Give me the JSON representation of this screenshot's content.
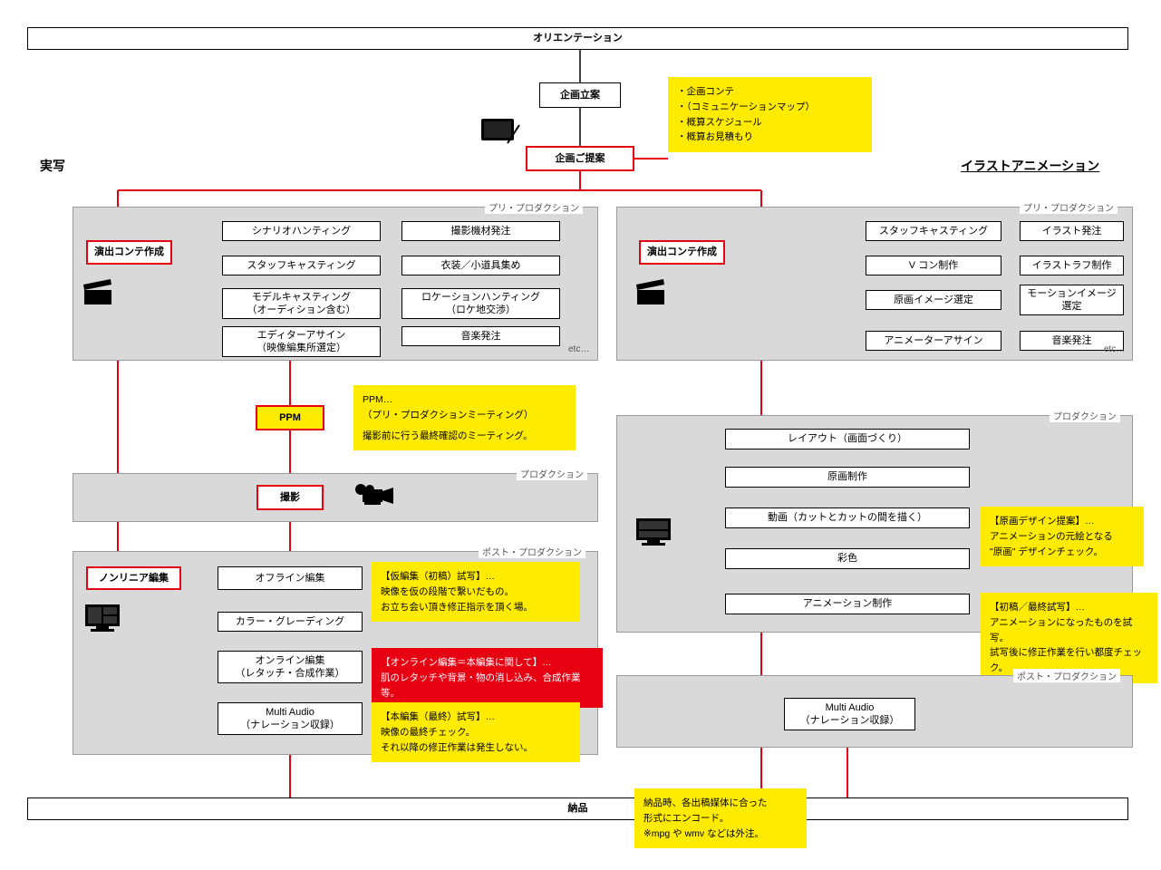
{
  "type": "flowchart",
  "colors": {
    "bg": "#ffffff",
    "panel_bg": "#d9d9d9",
    "panel_border": "#9b9b9b",
    "box_border": "#000000",
    "red": "#e60012",
    "yellow": "#ffeb00",
    "line_black": "#000000",
    "line_red": "#e60012"
  },
  "top": {
    "orientation": "オリエンテーション",
    "planning": "企画立案",
    "proposal": "企画ご提案"
  },
  "callout_proposal": {
    "l1": "・企画コンテ",
    "l2": "・（コミュニケーションマップ）",
    "l3": "・概算スケジュール",
    "l4": "・概算お見積もり"
  },
  "left_title": "実写",
  "right_title": "イラストアニメーション",
  "left_preprod": {
    "label": "プリ・プロダクション",
    "storyboard": "演出コンテ作成",
    "a1": "シナリオハンティング",
    "b1": "撮影機材発注",
    "a2": "スタッフキャスティング",
    "b2": "衣装／小道具集め",
    "a3": "モデルキャスティング\n（オーディション含む）",
    "b3": "ロケーションハンティング\n（ロケ地交渉）",
    "a4": "エディターアサイン\n（映像編集所選定）",
    "b4": "音楽発注",
    "etc": "etc…"
  },
  "ppm": "PPM",
  "callout_ppm": {
    "l1": "PPM…",
    "l2": "（プリ・プロダクションミーティング）",
    "l3": "撮影前に行う最終確認のミーティング。"
  },
  "left_prod": {
    "label": "プロダクション",
    "shoot": "撮影"
  },
  "left_postprod": {
    "label": "ポスト・プロダクション",
    "nonlinear": "ノンリニア編集",
    "offline": "オフライン編集",
    "color": "カラー・グレーディング",
    "online": "オンライン編集\n（レタッチ・合成作業）",
    "audio": "Multi Audio\n（ナレーション収録）"
  },
  "callout_offline": {
    "l1": "【仮編集（初稿）試写】…",
    "l2": "映像を仮の段階で繋いだもの。",
    "l3": "お立ち会い頂き修正指示を頂く場。"
  },
  "callout_online": {
    "l1": "【オンライン編集＝本編集に関して】…",
    "l2": "肌のレタッチや背景・物の消し込み、合成作業等。"
  },
  "callout_audio": {
    "l1": "【本編集（最終）試写】…",
    "l2": "映像の最終チェック。",
    "l3": "それ以降の修正作業は発生しない。"
  },
  "right_preprod": {
    "label": "プリ・プロダクション",
    "storyboard": "演出コンテ作成",
    "a1": "スタッフキャスティング",
    "b1": "イラスト発注",
    "a2": "V コン制作",
    "b2": "イラストラフ制作",
    "a3": "原画イメージ選定",
    "b3": "モーションイメージ\n選定",
    "a4": "アニメーターアサイン",
    "b4": "音楽発注",
    "etc": "etc…"
  },
  "right_prod": {
    "label": "プロダクション",
    "layout": "レイアウト（画面づくり）",
    "genga": "原画制作",
    "douga": "動画（カットとカットの間を描く）",
    "saishiki": "彩色",
    "anim": "アニメーション制作"
  },
  "callout_genga": {
    "l1": "【原画デザイン提案】…",
    "l2": "アニメーションの元絵となる",
    "l3": "\"原画\" デザインチェック。"
  },
  "callout_anim": {
    "l1": "【初稿／最終試写】…",
    "l2": "アニメーションになったものを試写。",
    "l3": "試写後に修正作業を行い都度チェック。"
  },
  "right_postprod": {
    "label": "ポスト・プロダクション",
    "audio": "Multi Audio\n（ナレーション収録）"
  },
  "delivery": "納品",
  "callout_delivery": {
    "l1": "納品時、各出稿媒体に合った",
    "l2": "形式にエンコード。",
    "l3": "※mpg や wmv などは外注。"
  }
}
